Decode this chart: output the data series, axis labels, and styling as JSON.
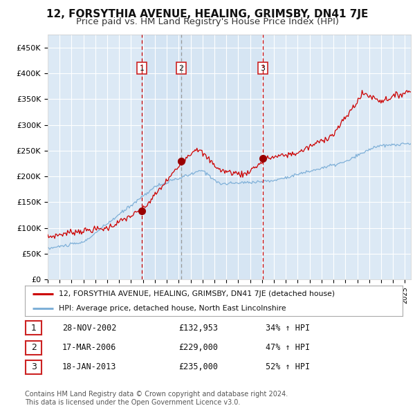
{
  "title": "12, FORSYTHIA AVENUE, HEALING, GRIMSBY, DN41 7JE",
  "subtitle": "Price paid vs. HM Land Registry's House Price Index (HPI)",
  "title_fontsize": 11,
  "subtitle_fontsize": 9.5,
  "background_color": "#ffffff",
  "plot_bg_color": "#dce9f5",
  "grid_color": "#ffffff",
  "yticks": [
    0,
    50000,
    100000,
    150000,
    200000,
    250000,
    300000,
    350000,
    400000,
    450000
  ],
  "ytick_labels": [
    "£0",
    "£50K",
    "£100K",
    "£150K",
    "£200K",
    "£250K",
    "£300K",
    "£350K",
    "£400K",
    "£450K"
  ],
  "sale1": {
    "date": "28-NOV-2002",
    "price": 132953,
    "year": 2002.91,
    "label": "1",
    "hpi_pct": "34% ↑ HPI"
  },
  "sale2": {
    "date": "17-MAR-2006",
    "price": 229000,
    "year": 2006.21,
    "label": "2",
    "hpi_pct": "47% ↑ HPI"
  },
  "sale3": {
    "date": "18-JAN-2013",
    "price": 235000,
    "year": 2013.05,
    "label": "3",
    "hpi_pct": "52% ↑ HPI"
  },
  "sale_color": "#cc0000",
  "sale_marker_color": "#990000",
  "hpi_color": "#7fb0d8",
  "vline1_color": "#cc0000",
  "vline2_color": "#999999",
  "vline3_color": "#cc0000",
  "legend_line1": "12, FORSYTHIA AVENUE, HEALING, GRIMSBY, DN41 7JE (detached house)",
  "legend_line2": "HPI: Average price, detached house, North East Lincolnshire",
  "footer": "Contains HM Land Registry data © Crown copyright and database right 2024.\nThis data is licensed under the Open Government Licence v3.0.",
  "xlim_start": 1995.0,
  "xlim_end": 2025.5,
  "ylim_top": 475000,
  "table_rows": [
    [
      "1",
      "28-NOV-2002",
      "£132,953",
      "34% ↑ HPI"
    ],
    [
      "2",
      "17-MAR-2006",
      "£229,000",
      "47% ↑ HPI"
    ],
    [
      "3",
      "18-JAN-2013",
      "£235,000",
      "52% ↑ HPI"
    ]
  ]
}
